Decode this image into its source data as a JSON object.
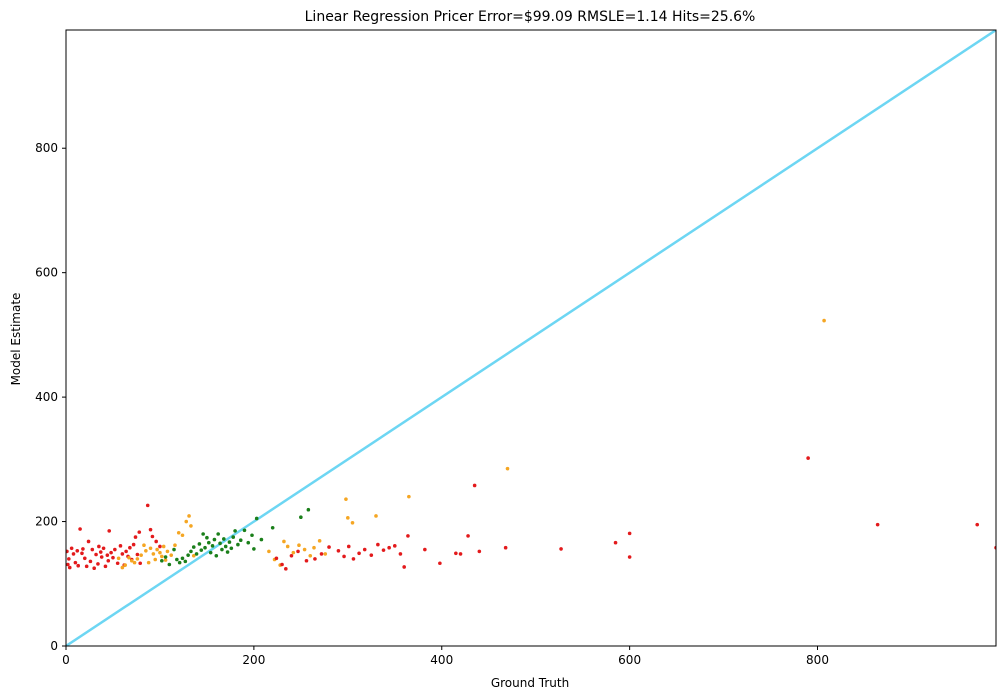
{
  "chart_data": {
    "type": "scatter",
    "title": "Linear Regression Pricer Error=$99.09 RMSLE=1.14 Hits=25.6%",
    "xlabel": "Ground Truth",
    "ylabel": "Model Estimate",
    "xlim": [
      0,
      990
    ],
    "ylim": [
      0,
      990
    ],
    "xticks": [
      0,
      200,
      400,
      600,
      800
    ],
    "yticks": [
      0,
      200,
      400,
      600,
      800
    ],
    "grid": false,
    "reference_line": {
      "x": [
        0,
        990
      ],
      "y": [
        0,
        990
      ],
      "color": "#6dd6f3"
    },
    "colors": {
      "red": "#e31a1c",
      "orange": "#f5a623",
      "green": "#1a7f1a"
    },
    "points": [
      [
        1,
        152,
        "red"
      ],
      [
        2,
        131,
        "red"
      ],
      [
        3,
        140,
        "red"
      ],
      [
        4,
        126,
        "red"
      ],
      [
        6,
        157,
        "red"
      ],
      [
        8,
        148,
        "red"
      ],
      [
        10,
        134,
        "red"
      ],
      [
        12,
        153,
        "red"
      ],
      [
        13,
        129,
        "red"
      ],
      [
        15,
        188,
        "red"
      ],
      [
        17,
        149,
        "red"
      ],
      [
        18,
        156,
        "red"
      ],
      [
        20,
        141,
        "red"
      ],
      [
        22,
        128,
        "red"
      ],
      [
        24,
        168,
        "red"
      ],
      [
        26,
        136,
        "red"
      ],
      [
        28,
        155,
        "red"
      ],
      [
        30,
        125,
        "red"
      ],
      [
        32,
        147,
        "red"
      ],
      [
        34,
        132,
        "red"
      ],
      [
        35,
        160,
        "red"
      ],
      [
        37,
        151,
        "red"
      ],
      [
        38,
        143,
        "red"
      ],
      [
        40,
        157,
        "red"
      ],
      [
        42,
        128,
        "red"
      ],
      [
        44,
        146,
        "red"
      ],
      [
        45,
        137,
        "red"
      ],
      [
        46,
        185,
        "red"
      ],
      [
        48,
        150,
        "red"
      ],
      [
        50,
        142,
        "red"
      ],
      [
        52,
        155,
        "red"
      ],
      [
        55,
        133,
        "red"
      ],
      [
        58,
        161,
        "red"
      ],
      [
        60,
        148,
        "red"
      ],
      [
        62,
        130,
        "red"
      ],
      [
        64,
        152,
        "red"
      ],
      [
        66,
        144,
        "red"
      ],
      [
        68,
        158,
        "red"
      ],
      [
        70,
        139,
        "red"
      ],
      [
        72,
        163,
        "red"
      ],
      [
        74,
        175,
        "red"
      ],
      [
        76,
        147,
        "red"
      ],
      [
        78,
        183,
        "red"
      ],
      [
        79,
        133,
        "red"
      ],
      [
        87,
        226,
        "red"
      ],
      [
        90,
        187,
        "red"
      ],
      [
        92,
        176,
        "red"
      ],
      [
        96,
        168,
        "red"
      ],
      [
        100,
        160,
        "red"
      ],
      [
        56,
        141,
        "orange"
      ],
      [
        60,
        126,
        "orange"
      ],
      [
        63,
        130,
        "orange"
      ],
      [
        67,
        142,
        "orange"
      ],
      [
        70,
        137,
        "orange"
      ],
      [
        73,
        134,
        "orange"
      ],
      [
        76,
        140,
        "orange"
      ],
      [
        80,
        146,
        "orange"
      ],
      [
        83,
        162,
        "orange"
      ],
      [
        85,
        153,
        "orange"
      ],
      [
        88,
        134,
        "orange"
      ],
      [
        90,
        157,
        "orange"
      ],
      [
        93,
        148,
        "orange"
      ],
      [
        95,
        139,
        "orange"
      ],
      [
        97,
        155,
        "orange"
      ],
      [
        100,
        150,
        "orange"
      ],
      [
        102,
        144,
        "orange"
      ],
      [
        104,
        160,
        "orange"
      ],
      [
        106,
        138,
        "orange"
      ],
      [
        108,
        152,
        "orange"
      ],
      [
        112,
        146,
        "orange"
      ],
      [
        116,
        162,
        "orange"
      ],
      [
        120,
        182,
        "orange"
      ],
      [
        124,
        178,
        "orange"
      ],
      [
        128,
        200,
        "orange"
      ],
      [
        131,
        209,
        "orange"
      ],
      [
        133,
        193,
        "orange"
      ],
      [
        136,
        145,
        "orange"
      ],
      [
        102,
        137,
        "green"
      ],
      [
        106,
        143,
        "green"
      ],
      [
        110,
        131,
        "green"
      ],
      [
        115,
        155,
        "green"
      ],
      [
        118,
        139,
        "green"
      ],
      [
        121,
        134,
        "green"
      ],
      [
        124,
        141,
        "green"
      ],
      [
        127,
        136,
        "green"
      ],
      [
        130,
        146,
        "green"
      ],
      [
        133,
        152,
        "green"
      ],
      [
        136,
        159,
        "green"
      ],
      [
        139,
        148,
        "green"
      ],
      [
        142,
        164,
        "green"
      ],
      [
        144,
        154,
        "green"
      ],
      [
        146,
        180,
        "green"
      ],
      [
        148,
        158,
        "green"
      ],
      [
        150,
        174,
        "green"
      ],
      [
        152,
        166,
        "green"
      ],
      [
        154,
        150,
        "green"
      ],
      [
        156,
        161,
        "green"
      ],
      [
        158,
        171,
        "green"
      ],
      [
        160,
        145,
        "green"
      ],
      [
        162,
        180,
        "green"
      ],
      [
        164,
        165,
        "green"
      ],
      [
        166,
        155,
        "green"
      ],
      [
        168,
        172,
        "green"
      ],
      [
        170,
        160,
        "green"
      ],
      [
        172,
        151,
        "green"
      ],
      [
        174,
        167,
        "green"
      ],
      [
        176,
        157,
        "green"
      ],
      [
        178,
        175,
        "green"
      ],
      [
        180,
        185,
        "green"
      ],
      [
        183,
        163,
        "green"
      ],
      [
        186,
        170,
        "green"
      ],
      [
        190,
        186,
        "green"
      ],
      [
        194,
        166,
        "green"
      ],
      [
        198,
        178,
        "green"
      ],
      [
        200,
        156,
        "green"
      ],
      [
        203,
        205,
        "green"
      ],
      [
        208,
        171,
        "green"
      ],
      [
        216,
        152,
        "orange"
      ],
      [
        222,
        139,
        "orange"
      ],
      [
        228,
        130,
        "orange"
      ],
      [
        232,
        168,
        "orange"
      ],
      [
        236,
        160,
        "orange"
      ],
      [
        242,
        150,
        "orange"
      ],
      [
        248,
        162,
        "orange"
      ],
      [
        254,
        155,
        "orange"
      ],
      [
        260,
        145,
        "orange"
      ],
      [
        264,
        158,
        "orange"
      ],
      [
        270,
        169,
        "orange"
      ],
      [
        276,
        148,
        "orange"
      ],
      [
        298,
        236,
        "orange"
      ],
      [
        300,
        206,
        "orange"
      ],
      [
        305,
        198,
        "orange"
      ],
      [
        330,
        209,
        "orange"
      ],
      [
        365,
        240,
        "orange"
      ],
      [
        470,
        285,
        "orange"
      ],
      [
        807,
        523,
        "orange"
      ],
      [
        220,
        190,
        "green"
      ],
      [
        250,
        207,
        "green"
      ],
      [
        258,
        219,
        "green"
      ],
      [
        224,
        141,
        "red"
      ],
      [
        230,
        131,
        "red"
      ],
      [
        234,
        124,
        "red"
      ],
      [
        240,
        145,
        "red"
      ],
      [
        247,
        152,
        "red"
      ],
      [
        256,
        137,
        "red"
      ],
      [
        265,
        140,
        "red"
      ],
      [
        272,
        148,
        "red"
      ],
      [
        280,
        159,
        "red"
      ],
      [
        290,
        153,
        "red"
      ],
      [
        296,
        144,
        "red"
      ],
      [
        301,
        160,
        "red"
      ],
      [
        306,
        140,
        "red"
      ],
      [
        312,
        149,
        "red"
      ],
      [
        318,
        155,
        "red"
      ],
      [
        325,
        146,
        "red"
      ],
      [
        332,
        163,
        "red"
      ],
      [
        338,
        154,
        "red"
      ],
      [
        344,
        158,
        "red"
      ],
      [
        350,
        161,
        "red"
      ],
      [
        356,
        148,
        "red"
      ],
      [
        360,
        127,
        "red"
      ],
      [
        364,
        177,
        "red"
      ],
      [
        382,
        155,
        "red"
      ],
      [
        398,
        133,
        "red"
      ],
      [
        415,
        149,
        "red"
      ],
      [
        420,
        148,
        "red"
      ],
      [
        428,
        177,
        "red"
      ],
      [
        435,
        258,
        "red"
      ],
      [
        440,
        152,
        "red"
      ],
      [
        468,
        158,
        "red"
      ],
      [
        527,
        156,
        "red"
      ],
      [
        585,
        166,
        "red"
      ],
      [
        600,
        181,
        "red"
      ],
      [
        600,
        143,
        "red"
      ],
      [
        790,
        302,
        "red"
      ],
      [
        864,
        195,
        "red"
      ],
      [
        970,
        195,
        "red"
      ],
      [
        990,
        158,
        "red"
      ]
    ]
  }
}
